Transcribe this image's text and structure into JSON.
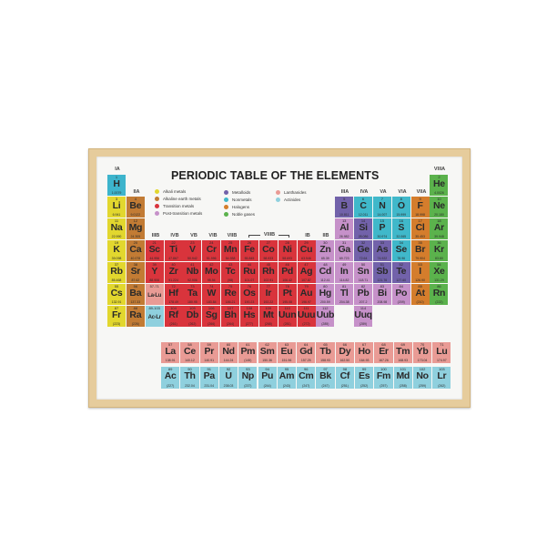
{
  "title": "PERIODIC TABLE OF THE ELEMENTS",
  "colors": {
    "frame": "#e6cc9c",
    "hydrogen": "#3db4cc",
    "alkali": "#e2d72e",
    "alkaline": "#c27b34",
    "transition": "#d9343c",
    "post": "#c691c9",
    "metalloid": "#7262aa",
    "nonmetal": "#40b8ca",
    "halogen": "#d47d2c",
    "noble": "#5bb24c",
    "lanthanide": "#e99b95",
    "actinide": "#8fd0de"
  },
  "legend": [
    {
      "label": "Alkali metals",
      "cat": "alkali"
    },
    {
      "label": "Alkaline earth metals",
      "cat": "alkaline"
    },
    {
      "label": "Transition metals",
      "cat": "transition"
    },
    {
      "label": "Post-transition metals",
      "cat": "post"
    },
    {
      "label": "Metalloids",
      "cat": "metalloid"
    },
    {
      "label": "Nonmetals",
      "cat": "nonmetal"
    },
    {
      "label": "Halogens",
      "cat": "halogen"
    },
    {
      "label": "Noble gases",
      "cat": "noble"
    },
    {
      "label": "Lanthanides",
      "cat": "lanthanide"
    },
    {
      "label": "Actinides",
      "cat": "actinide"
    }
  ],
  "group_labels": {
    "IA": "IA",
    "IIA": "IIA",
    "IIIB": "IIIB",
    "IVB": "IVB",
    "VB": "VB",
    "VIB": "VIB",
    "VIIB": "VIIB",
    "VIIIB": "VIIIB",
    "IB": "IB",
    "IIB": "IIB",
    "IIIA": "IIIA",
    "IVA": "IVA",
    "VA": "VA",
    "VIA": "VIA",
    "VIIA": "VIIA",
    "VIIIA": "VIIIA"
  },
  "elements": [
    [
      "1",
      "H",
      "1.0079",
      "hydrogen",
      1,
      1
    ],
    [
      "2",
      "He",
      "4.0026",
      "noble",
      1,
      18
    ],
    [
      "3",
      "Li",
      "6.941",
      "alkali",
      2,
      1
    ],
    [
      "4",
      "Be",
      "9.0122",
      "alkaline",
      2,
      2
    ],
    [
      "5",
      "B",
      "10.811",
      "metalloid",
      2,
      13
    ],
    [
      "6",
      "C",
      "12.011",
      "nonmetal",
      2,
      14
    ],
    [
      "7",
      "N",
      "14.007",
      "nonmetal",
      2,
      15
    ],
    [
      "8",
      "O",
      "15.999",
      "nonmetal",
      2,
      16
    ],
    [
      "9",
      "F",
      "18.998",
      "halogen",
      2,
      17
    ],
    [
      "10",
      "Ne",
      "20.180",
      "noble",
      2,
      18
    ],
    [
      "11",
      "Na",
      "22.990",
      "alkali",
      3,
      1
    ],
    [
      "12",
      "Mg",
      "24.305",
      "alkaline",
      3,
      2
    ],
    [
      "13",
      "Al",
      "26.982",
      "post",
      3,
      13
    ],
    [
      "14",
      "Si",
      "28.086",
      "metalloid",
      3,
      14
    ],
    [
      "15",
      "P",
      "30.974",
      "nonmetal",
      3,
      15
    ],
    [
      "16",
      "S",
      "32.065",
      "nonmetal",
      3,
      16
    ],
    [
      "17",
      "Cl",
      "35.453",
      "halogen",
      3,
      17
    ],
    [
      "18",
      "Ar",
      "39.948",
      "noble",
      3,
      18
    ],
    [
      "19",
      "K",
      "39.098",
      "alkali",
      4,
      1
    ],
    [
      "20",
      "Ca",
      "40.078",
      "alkaline",
      4,
      2
    ],
    [
      "21",
      "Sc",
      "44.956",
      "transition",
      4,
      3
    ],
    [
      "22",
      "Ti",
      "47.867",
      "transition",
      4,
      4
    ],
    [
      "23",
      "V",
      "50.942",
      "transition",
      4,
      5
    ],
    [
      "24",
      "Cr",
      "51.996",
      "transition",
      4,
      6
    ],
    [
      "25",
      "Mn",
      "54.938",
      "transition",
      4,
      7
    ],
    [
      "26",
      "Fe",
      "55.845",
      "transition",
      4,
      8
    ],
    [
      "27",
      "Co",
      "58.933",
      "transition",
      4,
      9
    ],
    [
      "28",
      "Ni",
      "58.693",
      "transition",
      4,
      10
    ],
    [
      "29",
      "Cu",
      "63.546",
      "transition",
      4,
      11
    ],
    [
      "30",
      "Zn",
      "65.39",
      "post",
      4,
      12
    ],
    [
      "31",
      "Ga",
      "69.723",
      "post",
      4,
      13
    ],
    [
      "32",
      "Ge",
      "72.64",
      "metalloid",
      4,
      14
    ],
    [
      "33",
      "As",
      "74.922",
      "metalloid",
      4,
      15
    ],
    [
      "34",
      "Se",
      "78.96",
      "nonmetal",
      4,
      16
    ],
    [
      "35",
      "Br",
      "79.904",
      "halogen",
      4,
      17
    ],
    [
      "36",
      "Kr",
      "83.80",
      "noble",
      4,
      18
    ],
    [
      "37",
      "Rb",
      "85.468",
      "alkali",
      5,
      1
    ],
    [
      "38",
      "Sr",
      "87.62",
      "alkaline",
      5,
      2
    ],
    [
      "39",
      "Y",
      "88.906",
      "transition",
      5,
      3
    ],
    [
      "40",
      "Zr",
      "91.224",
      "transition",
      5,
      4
    ],
    [
      "41",
      "Nb",
      "92.906",
      "transition",
      5,
      5
    ],
    [
      "42",
      "Mo",
      "95.94",
      "transition",
      5,
      6
    ],
    [
      "43",
      "Tc",
      "(98)",
      "transition",
      5,
      7
    ],
    [
      "44",
      "Ru",
      "101.07",
      "transition",
      5,
      8
    ],
    [
      "45",
      "Rh",
      "102.91",
      "transition",
      5,
      9
    ],
    [
      "46",
      "Pd",
      "106.42",
      "transition",
      5,
      10
    ],
    [
      "47",
      "Ag",
      "107.87",
      "transition",
      5,
      11
    ],
    [
      "48",
      "Cd",
      "112.41",
      "post",
      5,
      12
    ],
    [
      "49",
      "In",
      "114.82",
      "post",
      5,
      13
    ],
    [
      "50",
      "Sn",
      "118.71",
      "post",
      5,
      14
    ],
    [
      "51",
      "Sb",
      "121.76",
      "metalloid",
      5,
      15
    ],
    [
      "52",
      "Te",
      "127.60",
      "metalloid",
      5,
      16
    ],
    [
      "53",
      "I",
      "126.90",
      "halogen",
      5,
      17
    ],
    [
      "54",
      "Xe",
      "131.29",
      "noble",
      5,
      18
    ],
    [
      "55",
      "Cs",
      "132.91",
      "alkali",
      6,
      1
    ],
    [
      "56",
      "Ba",
      "137.33",
      "alkaline",
      6,
      2
    ],
    [
      "57-71",
      "La-Lu",
      "",
      "lanthanide",
      6,
      3
    ],
    [
      "72",
      "Hf",
      "178.49",
      "transition",
      6,
      4
    ],
    [
      "73",
      "Ta",
      "180.95",
      "transition",
      6,
      5
    ],
    [
      "74",
      "W",
      "183.84",
      "transition",
      6,
      6
    ],
    [
      "75",
      "Re",
      "186.21",
      "transition",
      6,
      7
    ],
    [
      "76",
      "Os",
      "190.23",
      "transition",
      6,
      8
    ],
    [
      "77",
      "Ir",
      "192.22",
      "transition",
      6,
      9
    ],
    [
      "78",
      "Pt",
      "195.08",
      "transition",
      6,
      10
    ],
    [
      "79",
      "Au",
      "196.97",
      "transition",
      6,
      11
    ],
    [
      "80",
      "Hg",
      "200.59",
      "post",
      6,
      12
    ],
    [
      "81",
      "Tl",
      "204.38",
      "post",
      6,
      13
    ],
    [
      "82",
      "Pb",
      "207.2",
      "post",
      6,
      14
    ],
    [
      "83",
      "Bi",
      "208.98",
      "post",
      6,
      15
    ],
    [
      "84",
      "Po",
      "(209)",
      "post",
      6,
      16
    ],
    [
      "85",
      "At",
      "(210)",
      "halogen",
      6,
      17
    ],
    [
      "86",
      "Rn",
      "(222)",
      "noble",
      6,
      18
    ],
    [
      "87",
      "Fr",
      "(223)",
      "alkali",
      7,
      1
    ],
    [
      "88",
      "Ra",
      "(226)",
      "alkaline",
      7,
      2
    ],
    [
      "89-103",
      "Ac-Lr",
      "",
      "actinide",
      7,
      3
    ],
    [
      "104",
      "Rf",
      "(261)",
      "transition",
      7,
      4
    ],
    [
      "105",
      "Db",
      "(262)",
      "transition",
      7,
      5
    ],
    [
      "106",
      "Sg",
      "(266)",
      "transition",
      7,
      6
    ],
    [
      "107",
      "Bh",
      "(264)",
      "transition",
      7,
      7
    ],
    [
      "108",
      "Hs",
      "(277)",
      "transition",
      7,
      8
    ],
    [
      "109",
      "Mt",
      "(268)",
      "transition",
      7,
      9
    ],
    [
      "110",
      "Uun",
      "(281)",
      "transition",
      7,
      10
    ],
    [
      "111",
      "Uuu",
      "(272)",
      "transition",
      7,
      11
    ],
    [
      "112",
      "Uub",
      "(285)",
      "post",
      7,
      12
    ],
    [
      "114",
      "Uuq",
      "(289)",
      "post",
      7,
      14
    ]
  ],
  "lanthanides": [
    [
      "57",
      "La",
      "138.91"
    ],
    [
      "58",
      "Ce",
      "140.12"
    ],
    [
      "59",
      "Pr",
      "140.91"
    ],
    [
      "60",
      "Nd",
      "144.24"
    ],
    [
      "61",
      "Pm",
      "(145)"
    ],
    [
      "62",
      "Sm",
      "150.36"
    ],
    [
      "63",
      "Eu",
      "151.96"
    ],
    [
      "64",
      "Gd",
      "157.25"
    ],
    [
      "65",
      "Tb",
      "158.93"
    ],
    [
      "66",
      "Dy",
      "162.50"
    ],
    [
      "67",
      "Ho",
      "164.93"
    ],
    [
      "68",
      "Er",
      "167.26"
    ],
    [
      "69",
      "Tm",
      "168.93"
    ],
    [
      "70",
      "Yb",
      "173.04"
    ],
    [
      "71",
      "Lu",
      "174.97"
    ]
  ],
  "actinides": [
    [
      "89",
      "Ac",
      "(227)"
    ],
    [
      "90",
      "Th",
      "232.04"
    ],
    [
      "91",
      "Pa",
      "231.04"
    ],
    [
      "92",
      "U",
      "238.03"
    ],
    [
      "93",
      "Np",
      "(237)"
    ],
    [
      "94",
      "Pu",
      "(244)"
    ],
    [
      "95",
      "Am",
      "(243)"
    ],
    [
      "96",
      "Cm",
      "(247)"
    ],
    [
      "97",
      "Bk",
      "(247)"
    ],
    [
      "98",
      "Cf",
      "(251)"
    ],
    [
      "99",
      "Es",
      "(252)"
    ],
    [
      "100",
      "Fm",
      "(257)"
    ],
    [
      "101",
      "Md",
      "(258)"
    ],
    [
      "102",
      "No",
      "(259)"
    ],
    [
      "103",
      "Lr",
      "(262)"
    ]
  ]
}
